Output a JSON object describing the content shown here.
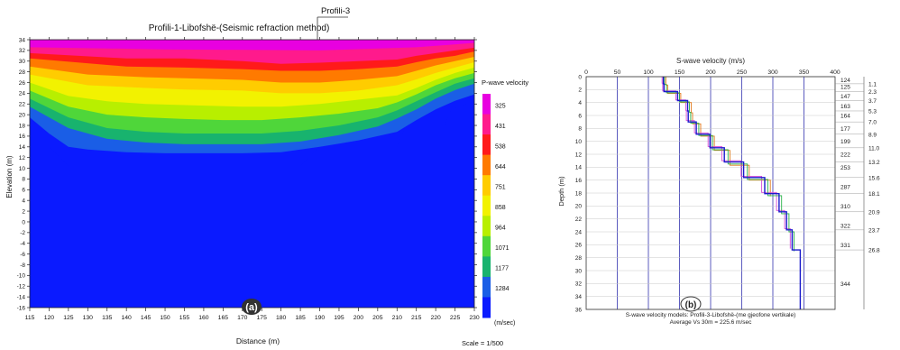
{
  "chart_data": [
    {
      "type": "heatmap",
      "panel_label": "(a)",
      "title": "Profili-1-Libofshë-(Seismic refraction method)",
      "callout": "Profili-3",
      "xlabel": "Distance (m)",
      "ylabel": "Elevation (m)",
      "xlim": [
        115,
        230
      ],
      "ylim": [
        -16,
        34
      ],
      "xticks": [
        115,
        120,
        125,
        130,
        135,
        140,
        145,
        150,
        155,
        160,
        165,
        170,
        175,
        180,
        185,
        190,
        195,
        200,
        205,
        210,
        215,
        220,
        225,
        230
      ],
      "yticks": [
        -16,
        -14,
        -12,
        -10,
        -8,
        -6,
        -4,
        -2,
        0,
        2,
        4,
        6,
        8,
        10,
        12,
        14,
        16,
        18,
        20,
        22,
        24,
        26,
        28,
        30,
        32,
        34
      ],
      "colorbar_title": "P-wave velocity",
      "colorbar_unit": "(m/sec)",
      "colorbar_levels": [
        325,
        431,
        538,
        644,
        751,
        858,
        964,
        1071,
        1177,
        1284
      ],
      "colorbar_colors": [
        "#e800e0",
        "#ff1a8c",
        "#ff1a1a",
        "#ff7a00",
        "#ffcc00",
        "#f2f200",
        "#b8ef00",
        "#4fd63a",
        "#18b36e",
        "#1a5ee6",
        "#0a1aff"
      ],
      "scale_text": "Scale = 1/500",
      "layer_boundaries": [
        {
          "level": 1,
          "x": [
            115,
            140,
            155,
            170,
            180,
            190,
            200,
            210,
            215,
            220,
            225,
            230
          ],
          "y": [
            31.5,
            30.5,
            30.5,
            30,
            29.5,
            29.7,
            30,
            30.3,
            31,
            31.5,
            32,
            32.5
          ]
        },
        {
          "level": 2,
          "x": [
            115,
            140,
            155,
            170,
            180,
            190,
            200,
            210,
            215,
            220,
            225,
            230
          ],
          "y": [
            30.5,
            29,
            28.8,
            28.5,
            28.2,
            28.2,
            28.5,
            29,
            29.8,
            30.5,
            31,
            31.8
          ]
        },
        {
          "level": 3,
          "x": [
            115,
            130,
            145,
            155,
            170,
            180,
            190,
            200,
            210,
            215,
            220,
            225,
            230
          ],
          "y": [
            29,
            27.5,
            27,
            26.8,
            26.5,
            26,
            26,
            26.5,
            27.2,
            28.2,
            29.2,
            30,
            30.8
          ]
        },
        {
          "level": 4,
          "x": [
            115,
            130,
            145,
            155,
            170,
            180,
            190,
            200,
            210,
            215,
            220,
            225,
            230
          ],
          "y": [
            27.5,
            25.5,
            25,
            24.7,
            24.5,
            24,
            24,
            24.5,
            25.5,
            26.6,
            27.8,
            28.8,
            29.8
          ]
        },
        {
          "level": 5,
          "x": [
            115,
            125,
            135,
            145,
            155,
            170,
            180,
            190,
            200,
            210,
            215,
            220,
            225,
            230
          ],
          "y": [
            26,
            23.5,
            22.5,
            22,
            21.8,
            21.5,
            21.5,
            22,
            22.8,
            23.6,
            25,
            26.5,
            27.8,
            28.8
          ]
        },
        {
          "level": 6,
          "x": [
            115,
            125,
            135,
            145,
            155,
            165,
            175,
            185,
            195,
            205,
            210,
            215,
            220,
            225,
            230
          ],
          "y": [
            24.5,
            21.5,
            20,
            19.5,
            19.2,
            19,
            19,
            19.5,
            20.2,
            21.2,
            22.3,
            23.8,
            25.5,
            26.8,
            27.8
          ]
        },
        {
          "level": 7,
          "x": [
            115,
            125,
            135,
            145,
            155,
            165,
            175,
            185,
            195,
            205,
            210,
            215,
            220,
            225,
            230
          ],
          "y": [
            23,
            19.5,
            17.5,
            16.8,
            16.5,
            16.5,
            16.5,
            17,
            18,
            19.5,
            20.8,
            22.5,
            24.2,
            25.8,
            26.8
          ]
        },
        {
          "level": 8,
          "x": [
            115,
            125,
            135,
            145,
            155,
            165,
            175,
            185,
            195,
            205,
            210,
            215,
            220,
            225,
            230
          ],
          "y": [
            21.5,
            17.5,
            15.5,
            14.8,
            14.5,
            14.5,
            14.5,
            15,
            16.2,
            17.8,
            19.3,
            21,
            23,
            24.6,
            25.8
          ]
        },
        {
          "level": 9,
          "x": [
            115,
            120,
            125,
            130,
            140,
            150,
            160,
            170,
            180,
            190,
            200,
            210,
            215,
            220,
            225,
            230
          ],
          "y": [
            19.5,
            16.5,
            14,
            13.5,
            13,
            12.8,
            12.8,
            12.8,
            13,
            14,
            15.2,
            16.8,
            19,
            21,
            22.6,
            23.8
          ]
        },
        {
          "level": 10,
          "x": [
            115,
            120,
            125,
            185,
            190,
            210,
            212,
            222,
            224,
            230
          ],
          "y": [
            14,
            14,
            10.5,
            10.5,
            14,
            14,
            17.5,
            17.5,
            21,
            22.5
          ]
        }
      ]
    },
    {
      "type": "line",
      "panel_label": "(b)",
      "title": "S-wave velocity (m/s)",
      "xlabel": "S-wave velocity (m/s)",
      "ylabel": "Depth (m)",
      "xlim": [
        0,
        400
      ],
      "ylim": [
        0,
        36
      ],
      "xticks": [
        0,
        50,
        100,
        150,
        200,
        250,
        300,
        350,
        400
      ],
      "yticks": [
        0,
        2,
        4,
        6,
        8,
        10,
        12,
        14,
        16,
        18,
        20,
        22,
        24,
        26,
        28,
        30,
        32,
        34,
        36
      ],
      "caption_line1": "S-wave velocity models: Profili-3-Libofshë-(me gjeofone vertikale)",
      "caption_line2": "Average Vs 30m = 225.6 m/sec",
      "layer_velocities": [
        {
          "value": "124",
          "depth": 0.5
        },
        {
          "value": "125",
          "depth": 1.5
        },
        {
          "value": "147",
          "depth": 3
        },
        {
          "value": "163",
          "depth": 4.5
        },
        {
          "value": "164",
          "depth": 6
        },
        {
          "value": "177",
          "depth": 8
        },
        {
          "value": "199",
          "depth": 10
        },
        {
          "value": "222",
          "depth": 12
        },
        {
          "value": "253",
          "depth": 14
        },
        {
          "value": "287",
          "depth": 17
        },
        {
          "value": "310",
          "depth": 20
        },
        {
          "value": "322",
          "depth": 23
        },
        {
          "value": "331",
          "depth": 26
        },
        {
          "value": "344",
          "depth": 32
        }
      ],
      "layer_depths": [
        "1.1",
        "2.3",
        "3.7",
        "5.3",
        "7.0",
        "8.9",
        "11.0",
        "13.2",
        "15.6",
        "18.1",
        "20.9",
        "23.7",
        "26.8"
      ],
      "series": [
        {
          "color": "#1a1acc",
          "x": [
            124,
            124,
            125,
            125,
            147,
            147,
            163,
            163,
            164,
            164,
            177,
            177,
            199,
            199,
            222,
            222,
            253,
            253,
            287,
            287,
            310,
            310,
            322,
            322,
            331,
            331,
            344,
            344
          ],
          "y": [
            0,
            1.1,
            1.1,
            2.3,
            2.3,
            3.7,
            3.7,
            5.3,
            5.3,
            7.0,
            7.0,
            8.9,
            8.9,
            11.0,
            11.0,
            13.2,
            13.2,
            15.6,
            15.6,
            18.1,
            18.1,
            20.9,
            20.9,
            23.7,
            23.7,
            26.8,
            26.8,
            36
          ]
        },
        {
          "color": "#2bb34a",
          "x": [
            126,
            126,
            129,
            129,
            150,
            150,
            166,
            166,
            168,
            168,
            181,
            181,
            203,
            203,
            228,
            228,
            259,
            259,
            292,
            292,
            314,
            314,
            326,
            326,
            334,
            334
          ],
          "y": [
            0,
            1.2,
            1.2,
            2.5,
            2.5,
            3.9,
            3.9,
            5.5,
            5.5,
            7.2,
            7.2,
            9.1,
            9.1,
            11.3,
            11.3,
            13.5,
            13.5,
            15.9,
            15.9,
            18.4,
            18.4,
            21.2,
            21.2,
            24.0,
            24.0,
            27
          ]
        },
        {
          "color": "#d64ad6",
          "x": [
            122,
            122,
            123,
            123,
            144,
            144,
            160,
            160,
            161,
            161,
            174,
            174,
            196,
            196,
            218,
            218,
            249,
            249,
            282,
            282,
            306,
            306,
            319,
            319,
            328,
            328
          ],
          "y": [
            0,
            1.0,
            1.0,
            2.2,
            2.2,
            3.6,
            3.6,
            5.2,
            5.2,
            6.8,
            6.8,
            8.7,
            8.7,
            10.8,
            10.8,
            13.0,
            13.0,
            15.4,
            15.4,
            17.9,
            17.9,
            20.7,
            20.7,
            23.5,
            23.5,
            26.6
          ]
        },
        {
          "color": "#e07a1a",
          "x": [
            128,
            128,
            131,
            131,
            152,
            152,
            169,
            169,
            171,
            171,
            184,
            184,
            206,
            206,
            231,
            231,
            262,
            262,
            296,
            296
          ],
          "y": [
            0,
            1.3,
            1.3,
            2.6,
            2.6,
            4.0,
            4.0,
            5.6,
            5.6,
            7.3,
            7.3,
            9.2,
            9.2,
            11.4,
            11.4,
            13.7,
            13.7,
            16.0,
            16.0,
            18.5
          ]
        }
      ]
    }
  ]
}
